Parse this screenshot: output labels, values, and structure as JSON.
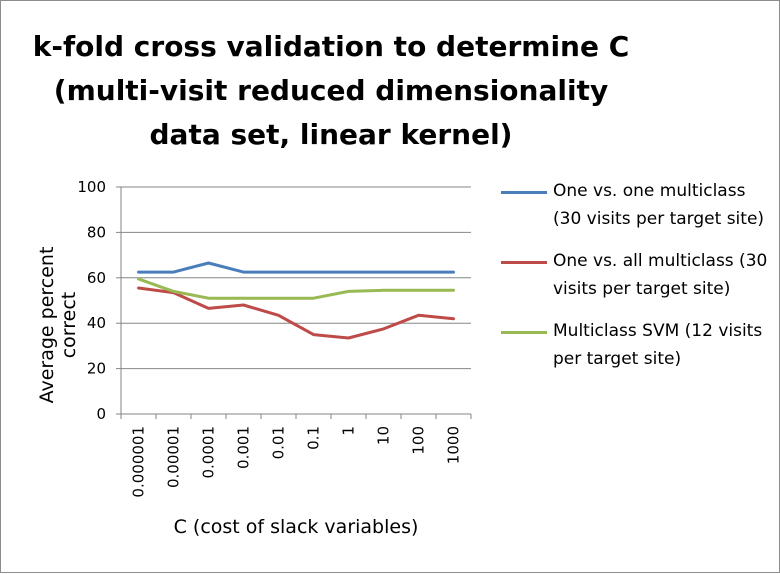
{
  "chart_data": {
    "type": "line",
    "title_lines": [
      "k-fold cross validation to determine C",
      "(multi-visit reduced dimensionality",
      "data set, linear kernel)"
    ],
    "xlabel": "C (cost of slack variables)",
    "ylabel": "Average percent correct",
    "categories": [
      "0.000001",
      "0.00001",
      "0.0001",
      "0.001",
      "0.01",
      "0.1",
      "1",
      "10",
      "100",
      "1000"
    ],
    "ylim": [
      0,
      100
    ],
    "yticks": [
      "0",
      "20",
      "40",
      "60",
      "80",
      "100"
    ],
    "grid": true,
    "legend_position": "right",
    "series": [
      {
        "name": "One vs. one multiclass (30 visits per target site)",
        "color": "#4a7ebb",
        "values": [
          62.5,
          62.5,
          66.5,
          62.5,
          62.5,
          62.5,
          62.5,
          62.5,
          62.5,
          62.5
        ]
      },
      {
        "name": "One vs. all multiclass (30 visits per target site)",
        "color": "#be4b48",
        "values": [
          55.5,
          53.5,
          46.5,
          48,
          43.5,
          35,
          33.5,
          37.5,
          43.5,
          42
        ]
      },
      {
        "name": "Multiclass SVM (12 visits per target site)",
        "color": "#98b954",
        "values": [
          59.5,
          54,
          51,
          51,
          51,
          51,
          54,
          54.5,
          54.5,
          54.5
        ]
      }
    ]
  }
}
